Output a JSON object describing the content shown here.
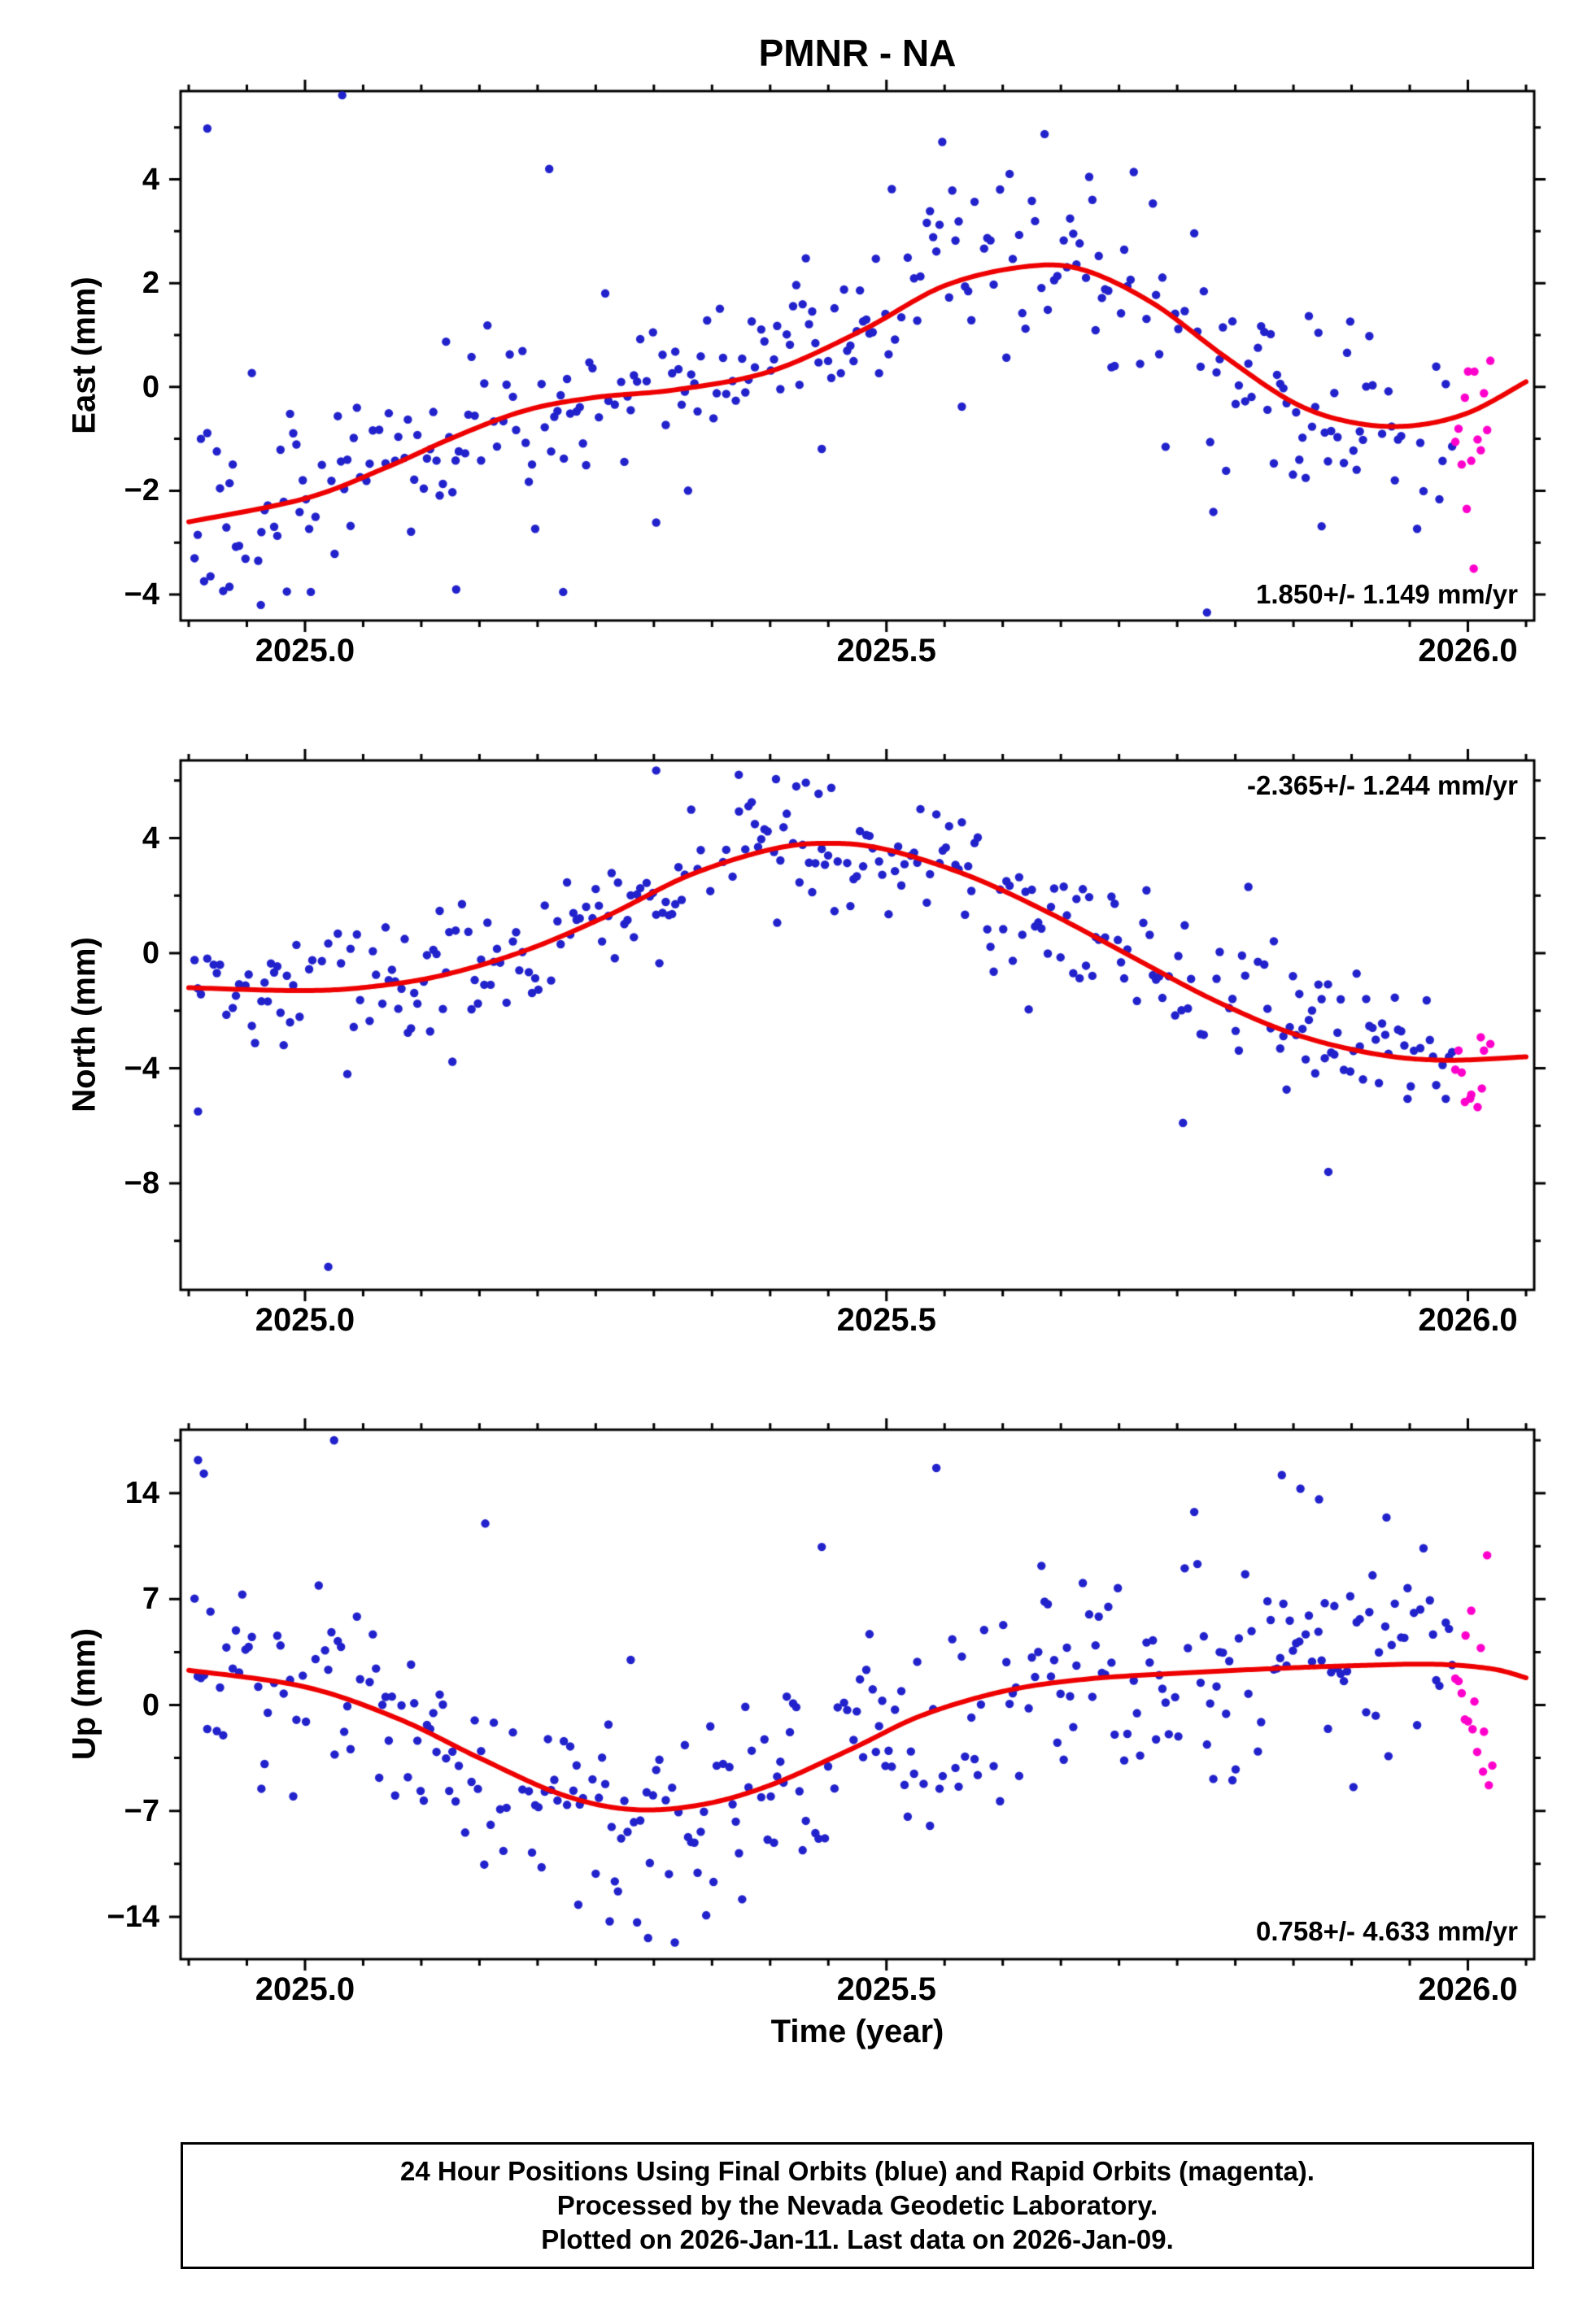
{
  "colors": {
    "final_orbit_blue": "#2222cc",
    "rapid_orbit_magenta": "#ff00cc",
    "trend_red": "#ee0000",
    "frame_black": "#000000",
    "background": "#ffffff"
  },
  "footer": {
    "lines": [
      "24 Hour Positions Using Final Orbits (blue) and Rapid Orbits (magenta).",
      "Processed by the Nevada Geodetic Laboratory.",
      "Plotted on 2026-Jan-11. Last data on 2026-Jan-09."
    ]
  },
  "chart_data": {
    "type": "scatter",
    "title": "PMNR - NA",
    "xlabel": "Time (year)",
    "x_range": [
      2024.893,
      2026.057
    ],
    "x_major_ticks": [
      2025.0,
      2025.5,
      2026.0
    ],
    "x_tick_labels": [
      "2025.0",
      "2025.5",
      "2026.0"
    ],
    "x_minor_step": 0.05,
    "legend": [
      {
        "name": "Final Orbits",
        "color_key": "final_orbit_blue"
      },
      {
        "name": "Rapid Orbits",
        "color_key": "rapid_orbit_magenta"
      }
    ],
    "panels": [
      {
        "id": "east",
        "ylabel": "East (mm)",
        "ylim": [
          -4.5,
          5.7
        ],
        "y_major_ticks": [
          -4,
          -2,
          0,
          2,
          4
        ],
        "y_tick_labels": [
          "−4",
          "−2",
          "0",
          "2",
          "4"
        ],
        "y_minor_step": 1,
        "rate_label": "1.850+/- 1.149 mm/yr",
        "rate_label_position": "bottom-right",
        "trend": [
          [
            2024.9,
            -2.6
          ],
          [
            2025.0,
            -2.15
          ],
          [
            2025.07,
            -1.55
          ],
          [
            2025.13,
            -0.95
          ],
          [
            2025.19,
            -0.45
          ],
          [
            2025.25,
            -0.2
          ],
          [
            2025.32,
            -0.05
          ],
          [
            2025.4,
            0.3
          ],
          [
            2025.48,
            1.1
          ],
          [
            2025.55,
            1.95
          ],
          [
            2025.62,
            2.32
          ],
          [
            2025.67,
            2.25
          ],
          [
            2025.73,
            1.6
          ],
          [
            2025.79,
            0.6
          ],
          [
            2025.85,
            -0.3
          ],
          [
            2025.9,
            -0.68
          ],
          [
            2025.95,
            -0.75
          ],
          [
            2026.0,
            -0.5
          ],
          [
            2026.05,
            0.1
          ]
        ],
        "scatter": {
          "seed": 20250111,
          "x_start": 2024.905,
          "x_end": 2026.022,
          "step_days": 1,
          "gap_prob": 0.18,
          "sigma": 0.85,
          "tail_prob": 0.05,
          "rapid_after": 2025.988
        },
        "outliers_final": [
          [
            2025.032,
            5.62
          ],
          [
            2024.916,
            4.98
          ],
          [
            2025.21,
            4.2
          ],
          [
            2025.548,
            4.72
          ],
          [
            2024.935,
            -3.85
          ],
          [
            2024.962,
            -4.2
          ],
          [
            2025.005,
            -3.95
          ],
          [
            2025.13,
            -3.9
          ],
          [
            2025.222,
            -3.95
          ]
        ],
        "outliers_rapid": [
          [
            2025.999,
            -2.35
          ],
          [
            2026.005,
            -3.5
          ]
        ]
      },
      {
        "id": "north",
        "ylabel": "North (mm)",
        "ylim": [
          -11.7,
          6.7
        ],
        "y_major_ticks": [
          -8,
          -4,
          0,
          4
        ],
        "y_tick_labels": [
          "−8",
          "−4",
          "0",
          "4"
        ],
        "y_minor_step": 2,
        "rate_label": "-2.365+/- 1.244 mm/yr",
        "rate_label_position": "top-right",
        "trend": [
          [
            2024.9,
            -1.2
          ],
          [
            2025.0,
            -1.3
          ],
          [
            2025.06,
            -1.15
          ],
          [
            2025.12,
            -0.75
          ],
          [
            2025.19,
            0.1
          ],
          [
            2025.26,
            1.3
          ],
          [
            2025.33,
            2.7
          ],
          [
            2025.4,
            3.6
          ],
          [
            2025.45,
            3.82
          ],
          [
            2025.5,
            3.6
          ],
          [
            2025.57,
            2.7
          ],
          [
            2025.64,
            1.4
          ],
          [
            2025.71,
            -0.1
          ],
          [
            2025.78,
            -1.6
          ],
          [
            2025.85,
            -2.8
          ],
          [
            2025.92,
            -3.5
          ],
          [
            2025.98,
            -3.72
          ],
          [
            2026.05,
            -3.6
          ]
        ],
        "scatter": {
          "seed": 777,
          "x_start": 2024.905,
          "x_end": 2026.022,
          "step_days": 1,
          "gap_prob": 0.18,
          "sigma": 1.05,
          "tail_prob": 0.05,
          "rapid_after": 2025.988
        },
        "outliers_final": [
          [
            2025.02,
            -10.9
          ],
          [
            2024.908,
            -5.5
          ],
          [
            2025.302,
            6.35
          ],
          [
            2025.373,
            6.2
          ],
          [
            2025.405,
            6.05
          ],
          [
            2025.88,
            -7.6
          ],
          [
            2025.755,
            -5.9
          ]
        ],
        "outliers_rapid": [
          [
            2026.002,
            -5.05
          ],
          [
            2026.012,
            -4.7
          ]
        ]
      },
      {
        "id": "up",
        "ylabel": "Up (mm)",
        "ylim": [
          -16.8,
          18.2
        ],
        "y_major_ticks": [
          -14,
          -7,
          0,
          7,
          14
        ],
        "y_tick_labels": [
          "−14",
          "−7",
          "0",
          "7",
          "14"
        ],
        "y_minor_step": 3.5,
        "rate_label": "0.758+/- 4.633 mm/yr",
        "rate_label_position": "bottom-right",
        "trend": [
          [
            2024.9,
            2.3
          ],
          [
            2025.0,
            1.2
          ],
          [
            2025.08,
            -0.9
          ],
          [
            2025.15,
            -3.5
          ],
          [
            2025.22,
            -5.9
          ],
          [
            2025.28,
            -6.9
          ],
          [
            2025.34,
            -6.6
          ],
          [
            2025.4,
            -5.3
          ],
          [
            2025.47,
            -2.9
          ],
          [
            2025.53,
            -0.7
          ],
          [
            2025.6,
            0.9
          ],
          [
            2025.67,
            1.7
          ],
          [
            2025.75,
            2.1
          ],
          [
            2025.83,
            2.4
          ],
          [
            2025.9,
            2.6
          ],
          [
            2025.97,
            2.7
          ],
          [
            2026.02,
            2.4
          ],
          [
            2026.05,
            1.8
          ]
        ],
        "scatter": {
          "seed": 4242,
          "x_start": 2024.905,
          "x_end": 2026.022,
          "step_days": 1,
          "gap_prob": 0.18,
          "sigma": 3.3,
          "tail_prob": 0.05,
          "rapid_after": 2025.988
        },
        "outliers_final": [
          [
            2024.908,
            16.2
          ],
          [
            2024.913,
            15.3
          ],
          [
            2025.025,
            17.5
          ],
          [
            2025.155,
            12.0
          ],
          [
            2025.235,
            -13.2
          ],
          [
            2025.262,
            -14.3
          ],
          [
            2025.295,
            -15.4
          ],
          [
            2025.318,
            -15.7
          ],
          [
            2025.345,
            -13.9
          ],
          [
            2025.84,
            15.2
          ],
          [
            2025.856,
            14.3
          ],
          [
            2025.872,
            13.6
          ],
          [
            2025.93,
            12.4
          ]
        ],
        "outliers_rapid": [
          [
            2025.998,
            4.6
          ],
          [
            2026.004,
            -1.6
          ],
          [
            2026.008,
            -3.1
          ],
          [
            2026.013,
            -4.4
          ],
          [
            2026.018,
            -5.3
          ],
          [
            2026.021,
            -4.0
          ]
        ]
      }
    ]
  }
}
